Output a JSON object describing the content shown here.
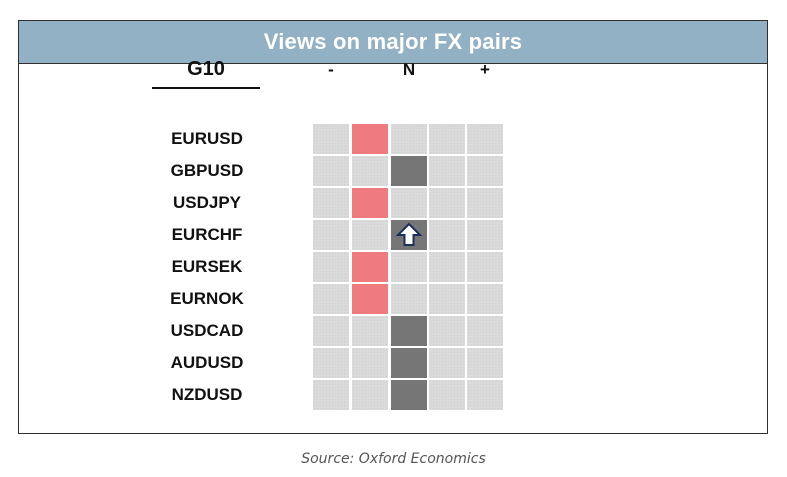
{
  "header": {
    "title": "Views on major FX pairs"
  },
  "group_label": "G10",
  "columns": [
    "-",
    "",
    "N",
    "",
    "+"
  ],
  "colors": {
    "header_bg": "#92b1c5",
    "negative": "#ef7b7e",
    "neutral": "#767676",
    "empty": "#dadada"
  },
  "chart_data": {
    "type": "table",
    "columns": [
      "-",
      "",
      "N",
      "",
      "+"
    ],
    "rows": [
      {
        "pair": "EURUSD",
        "position": 1,
        "marker": "fill"
      },
      {
        "pair": "GBPUSD",
        "position": 2,
        "marker": "fill"
      },
      {
        "pair": "USDJPY",
        "position": 1,
        "marker": "fill"
      },
      {
        "pair": "EURCHF",
        "position": 2,
        "marker": "up-arrow"
      },
      {
        "pair": "EURSEK",
        "position": 1,
        "marker": "fill"
      },
      {
        "pair": "EURNOK",
        "position": 1,
        "marker": "fill"
      },
      {
        "pair": "USDCAD",
        "position": 2,
        "marker": "fill"
      },
      {
        "pair": "AUDUSD",
        "position": 2,
        "marker": "fill"
      },
      {
        "pair": "NZDUSD",
        "position": 2,
        "marker": "fill"
      }
    ]
  },
  "source": "Source: Oxford Economics"
}
